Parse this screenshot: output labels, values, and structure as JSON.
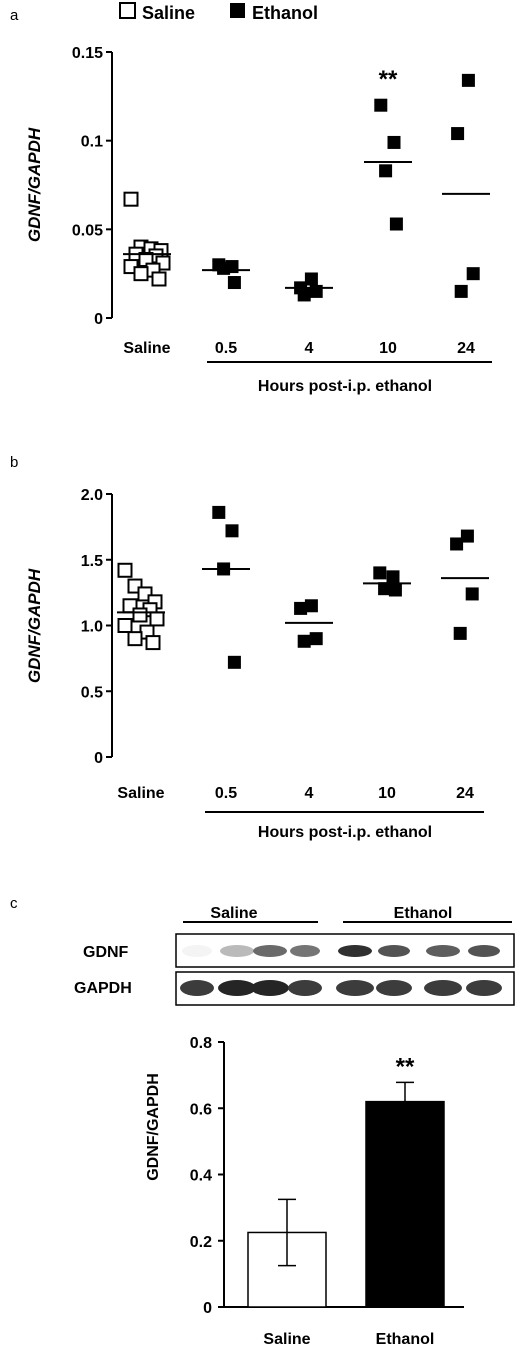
{
  "legend": [
    {
      "label": "Saline",
      "marker": "open-square"
    },
    {
      "label": "Ethanol",
      "marker": "filled-square"
    }
  ],
  "chart_data": [
    {
      "panel": "a",
      "type": "scatter",
      "ylabel": "GDNF/GAPDH",
      "ylim": [
        0,
        0.15
      ],
      "yticks": [
        "0",
        "0.05",
        "0.1",
        "0.15"
      ],
      "categories": [
        "Saline",
        "0.5",
        "4",
        "10",
        "24"
      ],
      "group_label": "Hours post-i.p. ethanol",
      "grid": false,
      "series": [
        {
          "name": "Saline",
          "marker": "open",
          "category": "Saline",
          "values": [
            0.067,
            0.04,
            0.039,
            0.038,
            0.036,
            0.035,
            0.033,
            0.031,
            0.029,
            0.027,
            0.025,
            0.022
          ],
          "mean": 0.036
        },
        {
          "name": "Ethanol",
          "marker": "filled",
          "category": "0.5",
          "values": [
            0.03,
            0.029,
            0.028,
            0.02
          ],
          "mean": 0.027
        },
        {
          "name": "Ethanol",
          "marker": "filled",
          "category": "4",
          "values": [
            0.022,
            0.017,
            0.015,
            0.013
          ],
          "mean": 0.017
        },
        {
          "name": "Ethanol",
          "marker": "filled",
          "category": "10",
          "values": [
            0.12,
            0.099,
            0.083,
            0.053
          ],
          "mean": 0.088,
          "annotation": "**"
        },
        {
          "name": "Ethanol",
          "marker": "filled",
          "category": "24",
          "values": [
            0.134,
            0.104,
            0.025,
            0.015
          ],
          "mean": 0.07
        }
      ]
    },
    {
      "panel": "b",
      "type": "scatter",
      "ylabel": "GDNF/GAPDH",
      "ylim": [
        0,
        2.0
      ],
      "yticks": [
        "0",
        "0.5",
        "1.0",
        "1.5",
        "2.0"
      ],
      "categories": [
        "Saline",
        "0.5",
        "4",
        "10",
        "24"
      ],
      "group_label": "Hours post-i.p. ethanol",
      "grid": false,
      "series": [
        {
          "name": "Saline",
          "marker": "open",
          "category": "Saline",
          "values": [
            1.42,
            1.3,
            1.24,
            1.18,
            1.15,
            1.12,
            1.08,
            1.05,
            1.0,
            0.95,
            0.9,
            0.87
          ],
          "mean": 1.1
        },
        {
          "name": "Ethanol",
          "marker": "filled",
          "category": "0.5",
          "values": [
            1.86,
            1.72,
            1.43,
            0.72
          ],
          "mean": 1.43
        },
        {
          "name": "Ethanol",
          "marker": "filled",
          "category": "4",
          "values": [
            1.15,
            1.13,
            0.9,
            0.88
          ],
          "mean": 1.02
        },
        {
          "name": "Ethanol",
          "marker": "filled",
          "category": "10",
          "values": [
            1.4,
            1.37,
            1.28,
            1.27
          ],
          "mean": 1.32
        },
        {
          "name": "Ethanol",
          "marker": "filled",
          "category": "24",
          "values": [
            1.68,
            1.62,
            1.24,
            0.94
          ],
          "mean": 1.36
        }
      ]
    },
    {
      "panel": "c",
      "type": "bar",
      "ylabel": "GDNF/GAPDH",
      "ylim": [
        0,
        0.8
      ],
      "yticks": [
        "0",
        "0.2",
        "0.4",
        "0.6",
        "0.8"
      ],
      "categories": [
        "Saline",
        "Ethanol"
      ],
      "values": [
        0.225,
        0.62
      ],
      "errors": [
        0.1,
        0.058
      ],
      "colors": [
        "#ffffff",
        "#000000"
      ],
      "annotations": [
        "",
        "**"
      ],
      "grid": false
    }
  ],
  "blot": {
    "group_labels": [
      "Saline",
      "Ethanol"
    ],
    "row_labels": [
      "GDNF",
      "GAPDH"
    ],
    "gdnf_intensity": [
      0.05,
      0.3,
      0.65,
      0.6,
      0.9,
      0.75,
      0.7,
      0.75
    ],
    "gapdh_intensity": [
      0.85,
      0.95,
      0.95,
      0.85,
      0.85,
      0.85,
      0.85,
      0.85
    ]
  }
}
